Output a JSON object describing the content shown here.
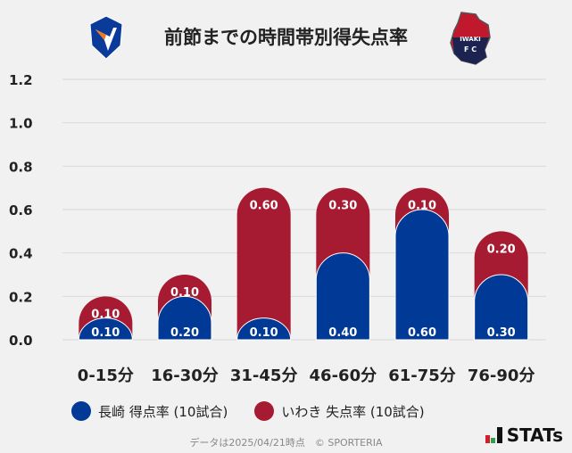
{
  "title": "前節までの時間帯別得失点率",
  "logos": {
    "left": "V-VAREN",
    "right": "IWAKI FC"
  },
  "legend": [
    {
      "label": "長崎 得点率 (10試合)",
      "color": "#003a96"
    },
    {
      "label": "いわき 失点率 (10試合)",
      "color": "#a61b31"
    }
  ],
  "footer": "データは2025/04/21時点　© SPORTERIA",
  "brand": "STATs",
  "chart_data": {
    "type": "bar",
    "stacked": true,
    "categories": [
      "0-15分",
      "16-30分",
      "31-45分",
      "46-60分",
      "61-75分",
      "76-90分"
    ],
    "series": [
      {
        "name": "長崎 得点率 (10試合)",
        "color": "#003a96",
        "values": [
          0.1,
          0.2,
          0.1,
          0.4,
          0.6,
          0.3
        ],
        "labels": [
          "0.10",
          "0.20",
          "0.10",
          "0.40",
          "0.60",
          "0.30"
        ]
      },
      {
        "name": "いわき 失点率 (10試合)",
        "color": "#a61b31",
        "values": [
          0.1,
          0.1,
          0.6,
          0.3,
          0.1,
          0.2
        ],
        "labels": [
          "0.10",
          "0.10",
          "0.60",
          "0.30",
          "0.10",
          "0.20"
        ]
      }
    ],
    "ylim": [
      0,
      1.2
    ],
    "yticks": [
      "0.0",
      "0.2",
      "0.4",
      "0.6",
      "0.8",
      "1.0",
      "1.2"
    ],
    "grid": true,
    "legend": "bottom"
  }
}
